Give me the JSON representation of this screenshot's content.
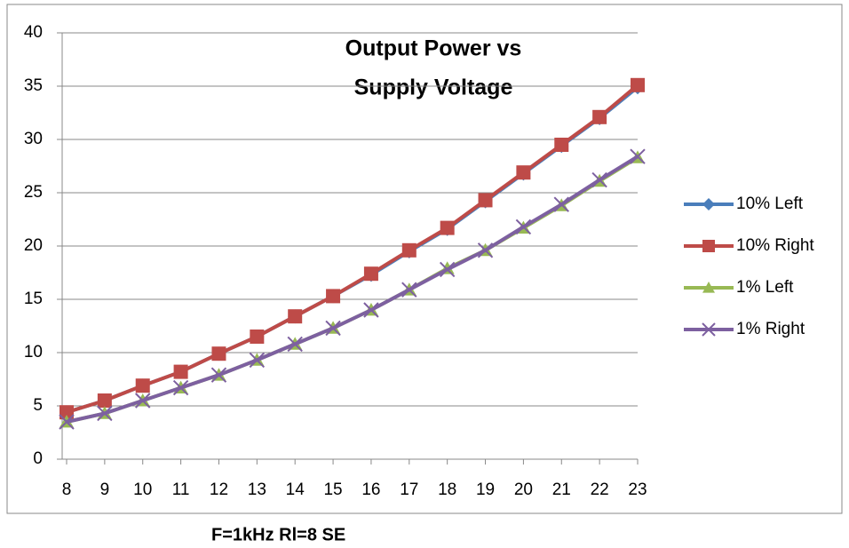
{
  "chart_data": {
    "type": "line",
    "title": [
      "Output Power vs",
      "Supply Voltage"
    ],
    "caption": "F=1kHz Rl=8 SE",
    "categories": [
      "8",
      "9",
      "10",
      "11",
      "12",
      "13",
      "14",
      "15",
      "16",
      "17",
      "18",
      "19",
      "20",
      "21",
      "22",
      "23"
    ],
    "series": [
      {
        "name": "10% Left",
        "color": "#4a7ebb",
        "marker": "diamond",
        "values": [
          4.4,
          5.5,
          6.9,
          8.2,
          9.9,
          11.5,
          13.4,
          15.3,
          17.3,
          19.5,
          21.6,
          24.2,
          26.8,
          29.4,
          32.0,
          34.9
        ]
      },
      {
        "name": "10% Right",
        "color": "#be4b48",
        "marker": "square",
        "values": [
          4.4,
          5.5,
          6.9,
          8.2,
          9.9,
          11.5,
          13.4,
          15.3,
          17.4,
          19.6,
          21.7,
          24.3,
          26.9,
          29.5,
          32.1,
          35.1
        ]
      },
      {
        "name": "1% Left",
        "color": "#98b954",
        "marker": "triangle",
        "values": [
          3.5,
          4.3,
          5.5,
          6.7,
          7.9,
          9.3,
          10.8,
          12.3,
          14.0,
          15.9,
          17.9,
          19.6,
          21.7,
          23.8,
          26.1,
          28.3
        ]
      },
      {
        "name": "1% Right",
        "color": "#7d60a0",
        "marker": "x",
        "values": [
          3.5,
          4.3,
          5.5,
          6.7,
          7.9,
          9.3,
          10.8,
          12.3,
          14.0,
          15.9,
          17.8,
          19.6,
          21.8,
          23.9,
          26.2,
          28.4
        ]
      }
    ],
    "ylim": [
      0,
      40
    ],
    "yticks": [
      0,
      5,
      10,
      15,
      20,
      25,
      30,
      35,
      40
    ],
    "grid": true,
    "legend": "right"
  }
}
